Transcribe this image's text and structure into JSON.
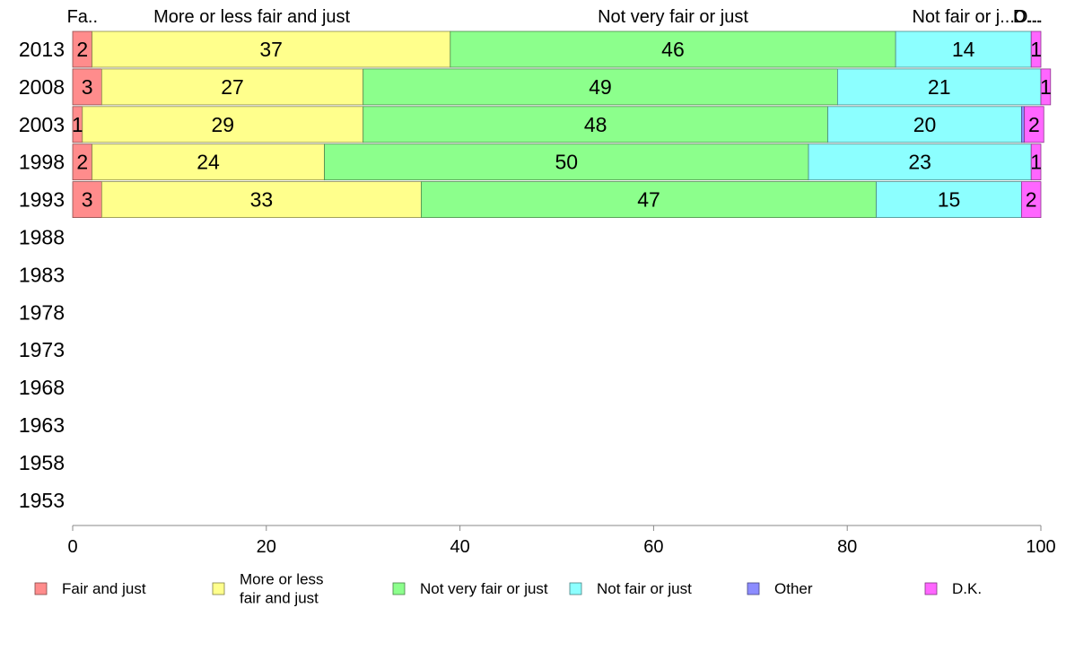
{
  "chart_data": {
    "type": "bar",
    "orientation": "horizontal",
    "stacked": true,
    "title": "",
    "xlabel": "",
    "ylabel": "",
    "xlim": [
      0,
      100
    ],
    "x_ticks": [
      "0",
      "20",
      "40",
      "60",
      "80",
      "100"
    ],
    "categories": [
      "2013",
      "2008",
      "2003",
      "1998",
      "1993",
      "1988",
      "1983",
      "1978",
      "1973",
      "1968",
      "1963",
      "1958",
      "1953"
    ],
    "series": [
      {
        "name": "Fair and just",
        "color": "#ff8c8c",
        "values": [
          2,
          3,
          1,
          2,
          3,
          null,
          null,
          null,
          null,
          null,
          null,
          null,
          null
        ]
      },
      {
        "name": "More or less fair and just",
        "color": "#ffff8c",
        "values": [
          37,
          27,
          29,
          24,
          33,
          null,
          null,
          null,
          null,
          null,
          null,
          null,
          null
        ]
      },
      {
        "name": "Not very fair or just",
        "color": "#8cff8c",
        "values": [
          46,
          49,
          48,
          50,
          47,
          null,
          null,
          null,
          null,
          null,
          null,
          null,
          null
        ]
      },
      {
        "name": "Not fair or just",
        "color": "#8cffff",
        "values": [
          14,
          21,
          20,
          23,
          15,
          null,
          null,
          null,
          null,
          null,
          null,
          null,
          null
        ]
      },
      {
        "name": "Other",
        "color": "#8c8cff",
        "values": [
          0,
          0,
          0.3,
          0,
          0,
          null,
          null,
          null,
          null,
          null,
          null,
          null,
          null
        ]
      },
      {
        "name": "D.K.",
        "color": "#ff66ff",
        "values": [
          1,
          1,
          2,
          1,
          2,
          null,
          null,
          null,
          null,
          null,
          null,
          null,
          null
        ]
      }
    ],
    "top_labels": [
      "Fa..",
      "More or less fair and just",
      "Not very fair or just",
      "Not fair or j...",
      "O...",
      "D..."
    ],
    "legend": {
      "placement": "bottom",
      "items": [
        {
          "text": [
            "Fair and just"
          ],
          "color": "#ff8c8c"
        },
        {
          "text": [
            "More or less",
            "fair and just"
          ],
          "color": "#ffff8c"
        },
        {
          "text": [
            "Not very fair or just"
          ],
          "color": "#8cff8c"
        },
        {
          "text": [
            "Not fair or just"
          ],
          "color": "#8cffff"
        },
        {
          "text": [
            "Other"
          ],
          "color": "#8c8cff"
        },
        {
          "text": [
            "D.K."
          ],
          "color": "#ff66ff"
        }
      ]
    },
    "grid": false
  }
}
